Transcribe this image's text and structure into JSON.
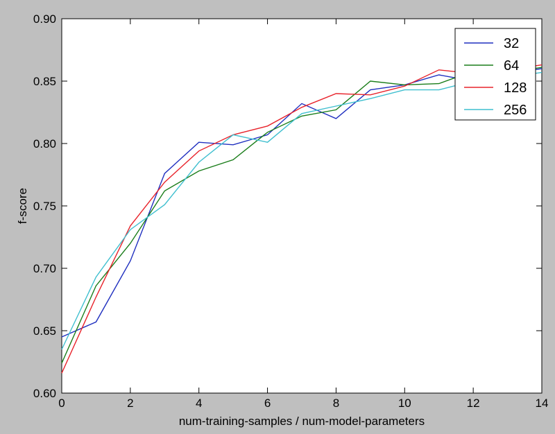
{
  "chart_data": {
    "type": "line",
    "xlabel": "num-training-samples / num-model-parameters",
    "ylabel": "f-score",
    "xlim": [
      0,
      14
    ],
    "ylim": [
      0.6,
      0.9
    ],
    "xticks": [
      "0",
      "2",
      "4",
      "6",
      "8",
      "10",
      "12",
      "14"
    ],
    "yticks": [
      "0.60",
      "0.65",
      "0.70",
      "0.75",
      "0.80",
      "0.85",
      "0.90"
    ],
    "grid": false,
    "legend_position": "top-right",
    "x": [
      0,
      1,
      2,
      3,
      4,
      5,
      6,
      7,
      8,
      9,
      10,
      11,
      12,
      13,
      14
    ],
    "series": [
      {
        "name": "32",
        "color": "#1f2fbf",
        "values": [
          0.645,
          0.657,
          0.706,
          0.776,
          0.801,
          0.799,
          0.807,
          0.832,
          0.82,
          0.843,
          0.847,
          0.855,
          0.85,
          0.856,
          0.86
        ]
      },
      {
        "name": "64",
        "color": "#1a7d1a",
        "values": [
          0.624,
          0.686,
          0.72,
          0.762,
          0.778,
          0.787,
          0.809,
          0.822,
          0.827,
          0.85,
          0.847,
          0.848,
          0.858,
          0.857,
          0.861
        ]
      },
      {
        "name": "128",
        "color": "#e8232b",
        "values": [
          0.616,
          0.677,
          0.734,
          0.769,
          0.794,
          0.807,
          0.814,
          0.829,
          0.84,
          0.839,
          0.846,
          0.859,
          0.856,
          0.859,
          0.863
        ]
      },
      {
        "name": "256",
        "color": "#3fbfcf",
        "values": [
          0.635,
          0.693,
          0.731,
          0.751,
          0.785,
          0.807,
          0.801,
          0.824,
          0.83,
          0.836,
          0.843,
          0.843,
          0.85,
          0.853,
          0.857
        ]
      }
    ]
  }
}
